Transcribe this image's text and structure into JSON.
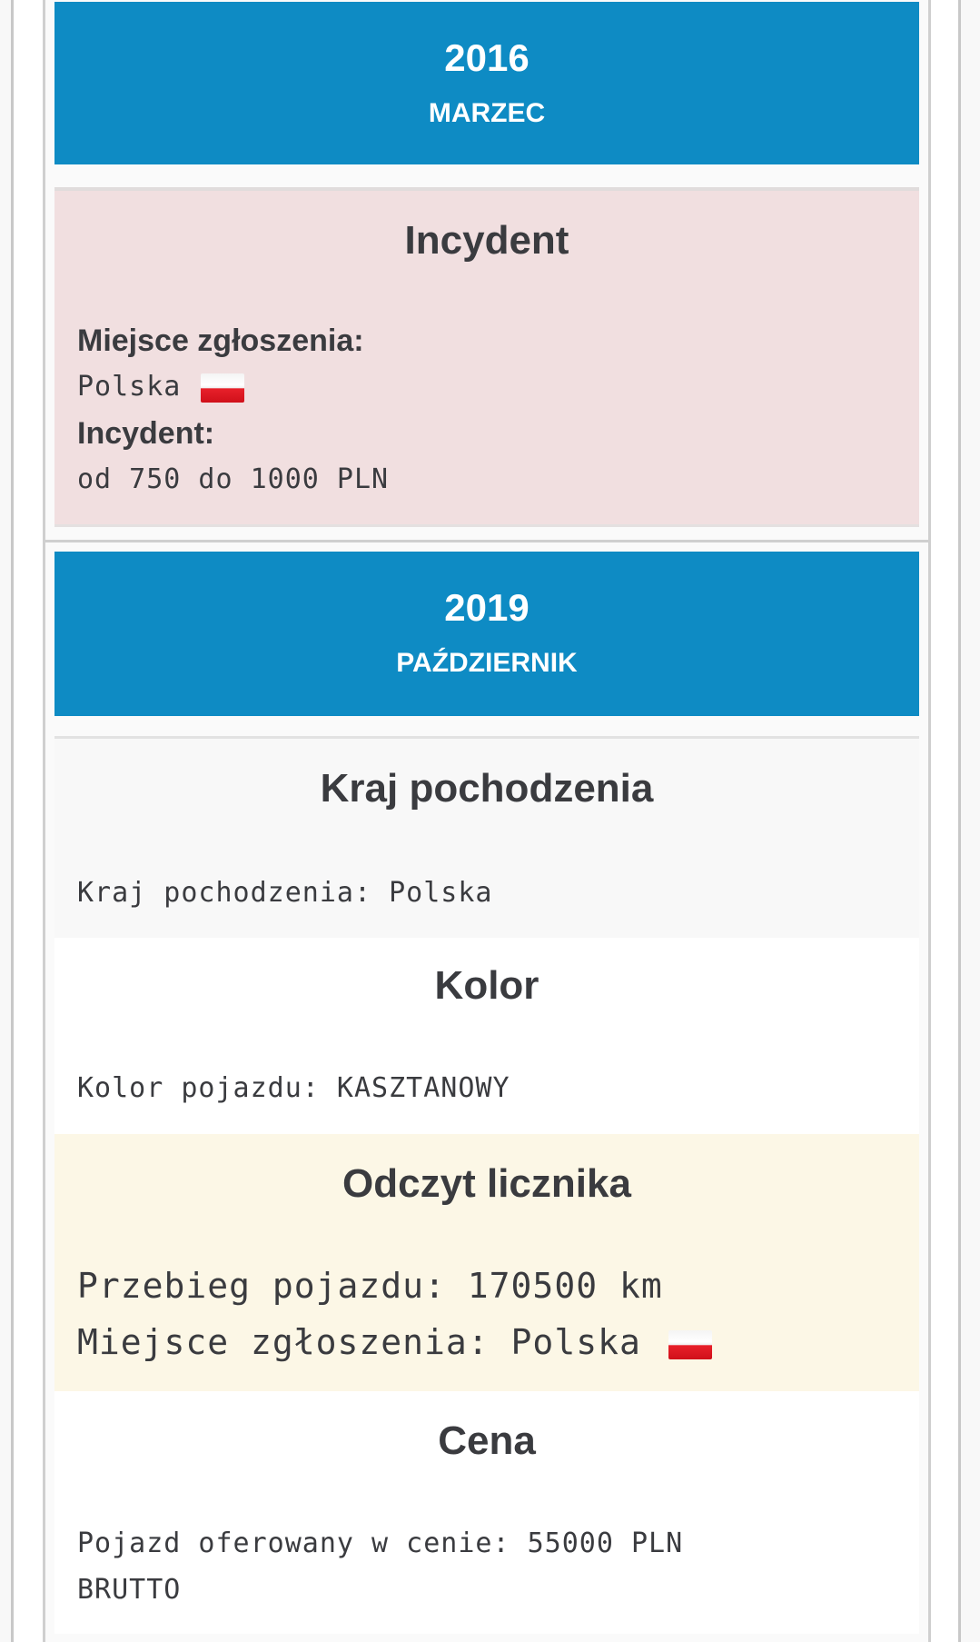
{
  "entries": [
    {
      "year": "2016",
      "month": "MARZEC",
      "incident": {
        "title": "Incydent",
        "place_label": "Miejsce zgłoszenia:",
        "place_value": "Polska",
        "incident_label": "Incydent:",
        "incident_value": "od 750 do 1000 PLN",
        "flag_icon": "poland-flag-icon"
      }
    },
    {
      "year": "2019",
      "month": "PAŹDZIERNIK",
      "origin": {
        "title": "Kraj pochodzenia",
        "text": "Kraj pochodzenia: Polska"
      },
      "color": {
        "title": "Kolor",
        "text": "Kolor pojazdu: KASZTANOWY"
      },
      "odometer": {
        "title": "Odczyt licznika",
        "mileage": "Przebieg pojazdu: 170500 km",
        "place": "Miejsce zgłoszenia: Polska",
        "flag_icon": "poland-flag-icon"
      },
      "price": {
        "title": "Cena",
        "line1": "Pojazd oferowany w cenie: 55000 PLN",
        "line2": "BRUTTO"
      }
    }
  ],
  "colors": {
    "date_header": "#0e8bc4",
    "incident_bg": "#f1dfe0",
    "odometer_bg": "#fcf7e6",
    "origin_bg": "#f8f8f8"
  }
}
